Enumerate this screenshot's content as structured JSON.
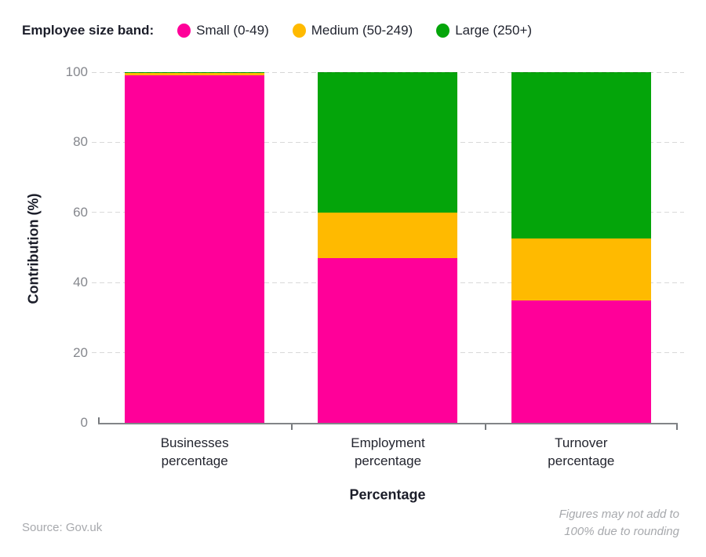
{
  "legend": {
    "title": "Employee size band:",
    "items": [
      {
        "label": "Small (0-49)",
        "color": "#ff0099"
      },
      {
        "label": "Medium (50-249)",
        "color": "#ffba00"
      },
      {
        "label": "Large (250+)",
        "color": "#04a50a"
      }
    ]
  },
  "chart_data": {
    "type": "bar",
    "stacked": true,
    "categories": [
      "Businesses\npercentage",
      "Employment\npercentage",
      "Turnover\npercentage"
    ],
    "series": [
      {
        "name": "Small (0-49)",
        "color": "#ff0099",
        "values": [
          99.2,
          47,
          35
        ]
      },
      {
        "name": "Medium (50-249)",
        "color": "#ffba00",
        "values": [
          0.6,
          13,
          17.5
        ]
      },
      {
        "name": "Large (250+)",
        "color": "#04a50a",
        "values": [
          0.2,
          40,
          47.5
        ]
      }
    ],
    "xlabel": "Percentage",
    "ylabel": "Contribution (%)",
    "ylim": [
      0,
      100
    ],
    "yticks": [
      0,
      20,
      40,
      60,
      80,
      100
    ],
    "grid": "horizontal dashed",
    "legend_position": "top-left"
  },
  "footer": {
    "source": "Source: Gov.uk",
    "note": "Figures may not add to\n100% due to rounding"
  },
  "colors": {
    "small": "#ff0099",
    "medium": "#ffba00",
    "large": "#04a50a",
    "grid": "#d9d9d9",
    "axis": "#828588",
    "tick_text": "#85878d",
    "text": "#1b1d29",
    "muted": "#a7a9ad"
  }
}
